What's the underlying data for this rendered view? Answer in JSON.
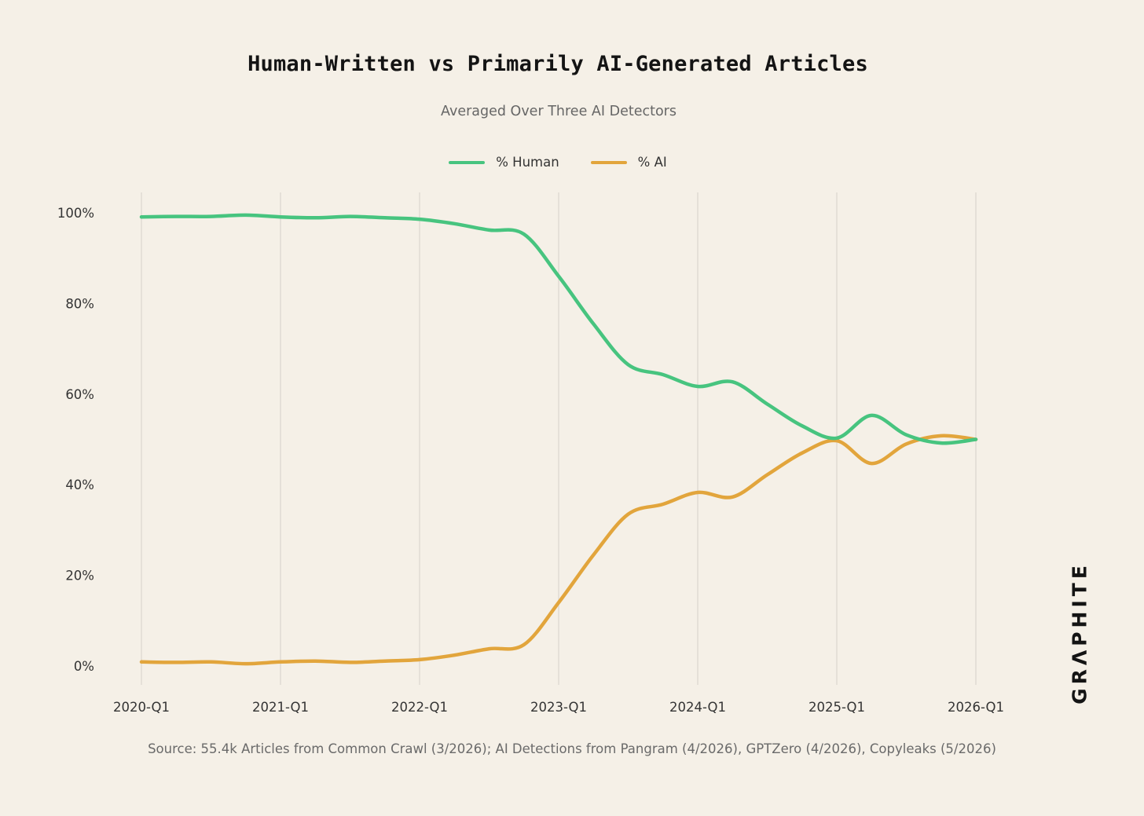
{
  "chart_data": {
    "type": "line",
    "title": "Human-Written vs Primarily AI-Generated Articles",
    "subtitle": "Averaged Over Three AI Detectors",
    "xlabel": "",
    "ylabel": "",
    "x_ticks": [
      "2020-Q1",
      "2021-Q1",
      "2022-Q1",
      "2023-Q1",
      "2024-Q1",
      "2025-Q1",
      "2026-Q1"
    ],
    "y_ticks": [
      "0%",
      "20%",
      "40%",
      "60%",
      "80%",
      "100%"
    ],
    "ylim": [
      0,
      100
    ],
    "grid": "vertical",
    "legend_position": "top-center",
    "x": [
      2020.0,
      2020.25,
      2020.5,
      2020.75,
      2021.0,
      2021.25,
      2021.5,
      2021.75,
      2022.0,
      2022.25,
      2022.5,
      2022.75,
      2023.0,
      2023.25,
      2023.5,
      2023.75,
      2024.0,
      2024.25,
      2024.5,
      2024.75,
      2025.0,
      2025.25,
      2025.5,
      2025.75,
      2026.0
    ],
    "series": [
      {
        "name": "% Human",
        "color": "#47c47f",
        "values": [
          99.1,
          99.2,
          99.2,
          99.5,
          99.1,
          98.9,
          99.2,
          98.9,
          98.6,
          97.6,
          96.2,
          95.3,
          86.0,
          75.5,
          66.5,
          64.3,
          61.7,
          62.7,
          57.8,
          53.0,
          50.3,
          55.3,
          51.0,
          49.2,
          50.0
        ]
      },
      {
        "name": "% AI",
        "color": "#e2a53c",
        "values": [
          0.9,
          0.8,
          0.9,
          0.5,
          0.9,
          1.1,
          0.8,
          1.1,
          1.4,
          2.4,
          3.8,
          4.7,
          14.0,
          24.5,
          33.5,
          35.7,
          38.3,
          37.3,
          42.2,
          47.0,
          49.7,
          44.7,
          49.0,
          50.8,
          50.0
        ]
      }
    ]
  },
  "source_text": "Source: 55.4k Articles from Common Crawl (3/2026); AI Detections from Pangram (4/2026), GPTZero (4/2026), Copyleaks (5/2026)",
  "logo_text": "GRΛPHITE",
  "colors": {
    "background": "#f5f0e7",
    "grid": "#dcd7cf",
    "human": "#47c47f",
    "ai": "#e2a53c"
  }
}
